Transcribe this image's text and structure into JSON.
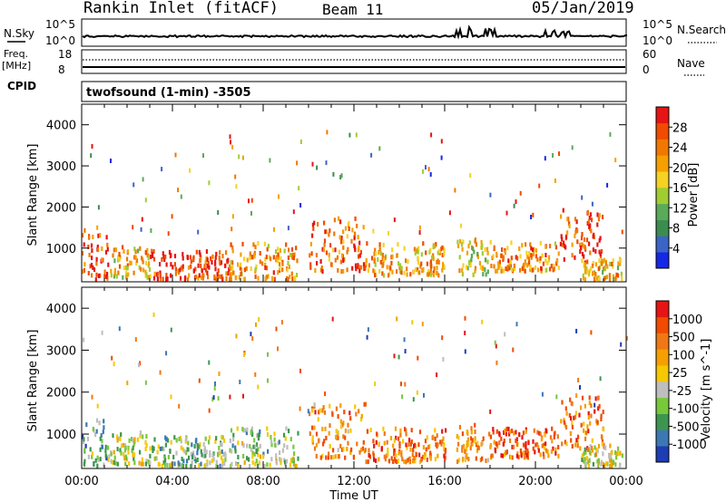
{
  "header": {
    "title": "Rankin Inlet (fitACF)",
    "beam": "Beam 11",
    "date": "05/Jan/2019"
  },
  "strips": {
    "nsky_label": "N.Sky",
    "nsky_ticks": [
      "10^5",
      "10^0"
    ],
    "nsearch_label": "N.Search",
    "nsearch_ticks": [
      "10^5",
      "10^0"
    ],
    "freq_label": "Freq.",
    "freq_unit": "[MHz]",
    "freq_ticks": [
      "18",
      "8"
    ],
    "nave_label": "Nave",
    "nave_ticks": [
      "60",
      "0"
    ],
    "cpid_label": "CPID",
    "cpid_value": "twofsound (1-min) -3505"
  },
  "chart_data": [
    {
      "type": "heatmap",
      "panel": "power",
      "ylabel": "Slant Range [km]",
      "y_ticks": [
        "1000",
        "2000",
        "3000",
        "4000"
      ],
      "ylim": [
        180,
        4500
      ],
      "x_ticks": [
        "00:00",
        "04:00",
        "08:00",
        "12:00",
        "16:00",
        "20:00",
        "00:00"
      ],
      "xlim_hours": [
        0,
        24
      ],
      "colorbar_label": "Power [dB]",
      "colorbar_ticks": [
        "4",
        "8",
        "12",
        "16",
        "20",
        "24",
        "28"
      ],
      "colorbar_colors": [
        "#1428e6",
        "#3c64c8",
        "#3c8c50",
        "#5aaa5a",
        "#a0cd32",
        "#f5d223",
        "#f5a000",
        "#f07800",
        "#f04b00",
        "#e61414"
      ],
      "regions": [
        {
          "t": [
            0.0,
            1.2
          ],
          "r": [
            200,
            1400
          ],
          "level": 0.85
        },
        {
          "t": [
            1.2,
            3.0
          ],
          "r": [
            250,
            1000
          ],
          "level": 0.6
        },
        {
          "t": [
            3.0,
            6.5
          ],
          "r": [
            200,
            900
          ],
          "level": 0.9
        },
        {
          "t": [
            6.5,
            9.5
          ],
          "r": [
            200,
            1100
          ],
          "level": 0.7
        },
        {
          "t": [
            10.0,
            12.5
          ],
          "r": [
            400,
            1700
          ],
          "level": 0.8
        },
        {
          "t": [
            12.5,
            16.0
          ],
          "r": [
            300,
            1100
          ],
          "level": 0.65
        },
        {
          "t": [
            16.5,
            18.0
          ],
          "r": [
            300,
            1200
          ],
          "level": 0.55
        },
        {
          "t": [
            18.0,
            21.0
          ],
          "r": [
            400,
            1100
          ],
          "level": 0.7
        },
        {
          "t": [
            21.0,
            23.0
          ],
          "r": [
            600,
            1900
          ],
          "level": 0.85
        },
        {
          "t": [
            22.0,
            23.8
          ],
          "r": [
            200,
            700
          ],
          "level": 0.6
        }
      ]
    },
    {
      "type": "heatmap",
      "panel": "velocity",
      "ylabel": "Slant Range [km]",
      "y_ticks": [
        "1000",
        "2000",
        "3000",
        "4000"
      ],
      "ylim": [
        180,
        4500
      ],
      "x_ticks": [
        "00:00",
        "04:00",
        "08:00",
        "12:00",
        "16:00",
        "20:00",
        "00:00"
      ],
      "xlim_hours": [
        0,
        24
      ],
      "xlabel": "Time UT",
      "colorbar_label": "Velocity [m s^-1]",
      "colorbar_ticks": [
        "1000",
        "500",
        "100",
        "25",
        "-25",
        "-100",
        "-500",
        "-1000"
      ],
      "colorbar_colors": [
        "#1e3cb4",
        "#3c78b4",
        "#3c9650",
        "#78c83c",
        "#bebebe",
        "#f5c800",
        "#f5a000",
        "#f07814",
        "#f04b00",
        "#e61414"
      ],
      "regions": [
        {
          "t": [
            0.0,
            1.2
          ],
          "r": [
            200,
            1400
          ],
          "level": 0.3
        },
        {
          "t": [
            1.2,
            3.0
          ],
          "r": [
            250,
            1000
          ],
          "level": 0.45
        },
        {
          "t": [
            3.0,
            6.5
          ],
          "r": [
            200,
            900
          ],
          "level": 0.35
        },
        {
          "t": [
            6.5,
            9.5
          ],
          "r": [
            200,
            1100
          ],
          "level": 0.4
        },
        {
          "t": [
            10.0,
            12.5
          ],
          "r": [
            400,
            1700
          ],
          "level": 0.7
        },
        {
          "t": [
            12.5,
            16.0
          ],
          "r": [
            300,
            1100
          ],
          "level": 0.75
        },
        {
          "t": [
            16.5,
            18.0
          ],
          "r": [
            300,
            1200
          ],
          "level": 0.7
        },
        {
          "t": [
            18.0,
            21.0
          ],
          "r": [
            400,
            1100
          ],
          "level": 0.8
        },
        {
          "t": [
            21.0,
            23.0
          ],
          "r": [
            600,
            1900
          ],
          "level": 0.75
        },
        {
          "t": [
            22.0,
            23.8
          ],
          "r": [
            200,
            700
          ],
          "level": 0.5
        }
      ]
    }
  ]
}
